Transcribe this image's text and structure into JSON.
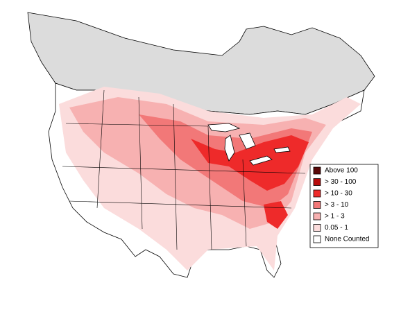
{
  "legend": {
    "items": [
      {
        "label": "Above 100",
        "color": "#5a0a0a"
      },
      {
        "label": "> 30 - 100",
        "color": "#b80d0d"
      },
      {
        "label": "> 10 - 30",
        "color": "#ee2a2a"
      },
      {
        "label": "> 3 - 10",
        "color": "#f27878"
      },
      {
        "label": "> 1 - 3",
        "color": "#f7b1b1"
      },
      {
        "label": "0.05 - 1",
        "color": "#fbdcdc"
      },
      {
        "label": "None Counted",
        "color": "#ffffff"
      }
    ]
  }
}
